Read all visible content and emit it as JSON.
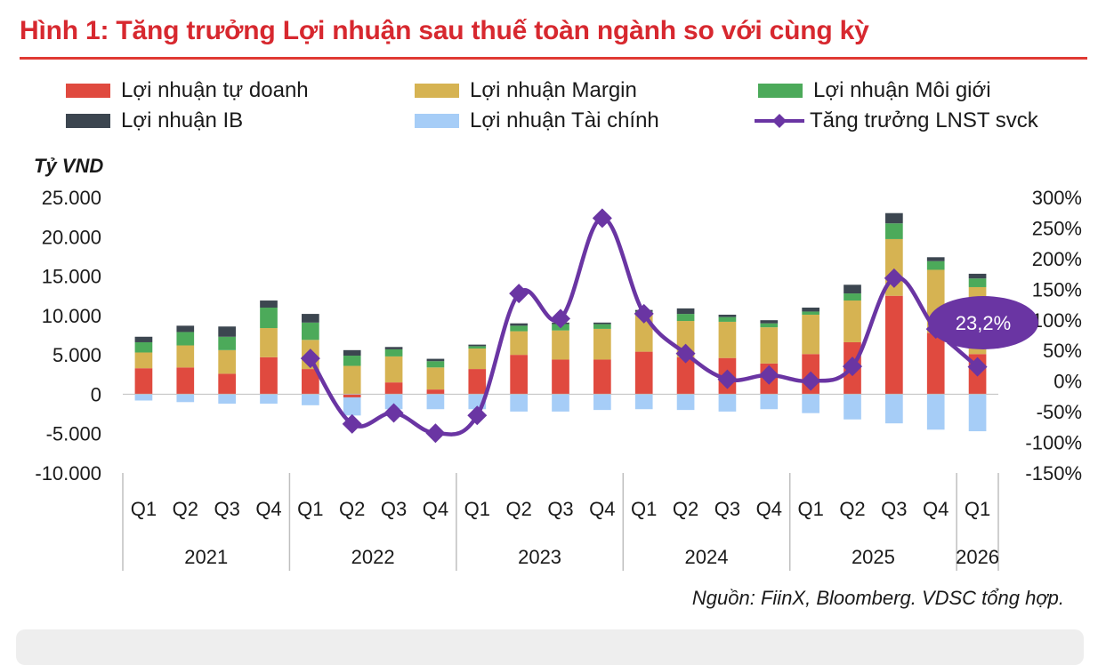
{
  "header": {
    "title": "Hình 1: Tăng trưởng Lợi nhuận sau thuế toàn ngành so với cùng kỳ"
  },
  "legend": {
    "items": [
      {
        "label": "Lợi nhuận tự doanh",
        "color": "#e04a3f",
        "kind": "bar"
      },
      {
        "label": "Lợi nhuận Margin",
        "color": "#d6b352",
        "kind": "bar"
      },
      {
        "label": "Lợi nhuận Môi giới",
        "color": "#4caa5a",
        "kind": "bar"
      },
      {
        "label": "Lợi nhuận IB",
        "color": "#3c4650",
        "kind": "bar"
      },
      {
        "label": "Lợi nhuận Tài chính",
        "color": "#a6cdf7",
        "kind": "bar"
      },
      {
        "label": "Tăng trưởng LNST svck",
        "color": "#6a35a3",
        "kind": "line"
      }
    ]
  },
  "chart_data": {
    "type": "bar",
    "stacked": true,
    "title": "Hình 1: Tăng trưởng Lợi nhuận sau thuế toàn ngành so với cùng kỳ",
    "ylabel": "Tỷ VND",
    "ylim": [
      -10000,
      25000
    ],
    "yticks": [
      25000,
      20000,
      15000,
      10000,
      5000,
      0,
      -5000,
      -10000
    ],
    "ytick_labels": [
      "25.000",
      "20.000",
      "15.000",
      "10.000",
      "5.000",
      "0",
      "-5.000",
      "-10.000"
    ],
    "y2lim": [
      -150,
      300
    ],
    "y2ticks": [
      300,
      250,
      200,
      150,
      100,
      50,
      0,
      -50,
      -100,
      -150
    ],
    "y2tick_labels": [
      "300%",
      "250%",
      "200%",
      "150%",
      "100%",
      "50%",
      "0%",
      "-50%",
      "-100%",
      "-150%"
    ],
    "categories": [
      "Q1",
      "Q2",
      "Q3",
      "Q4",
      "Q1",
      "Q2",
      "Q3",
      "Q4",
      "Q1",
      "Q2",
      "Q3",
      "Q4",
      "Q1",
      "Q2",
      "Q3",
      "Q4",
      "Q1",
      "Q2",
      "Q3",
      "Q4",
      "Q1"
    ],
    "year_groups": [
      {
        "label": "2021",
        "count": 4
      },
      {
        "label": "2022",
        "count": 4
      },
      {
        "label": "2023",
        "count": 4
      },
      {
        "label": "2024",
        "count": 4
      },
      {
        "label": "2025",
        "count": 4
      },
      {
        "label": "2026",
        "count": 1
      }
    ],
    "series": [
      {
        "name": "Lợi nhuận tự doanh",
        "color": "#e04a3f",
        "values": [
          3300,
          3400,
          2600,
          4700,
          3200,
          -400,
          1500,
          600,
          3200,
          5000,
          4400,
          4400,
          5400,
          4700,
          4600,
          3900,
          5100,
          6600,
          12500,
          7800,
          5100
        ]
      },
      {
        "name": "Lợi nhuận Margin",
        "color": "#d6b352",
        "values": [
          2000,
          2800,
          3000,
          3700,
          3700,
          3600,
          3300,
          2800,
          2600,
          3000,
          3700,
          3900,
          4700,
          4600,
          4600,
          4600,
          5000,
          5300,
          7200,
          8000,
          8500
        ]
      },
      {
        "name": "Lợi nhuận Môi giới",
        "color": "#4caa5a",
        "values": [
          1300,
          1700,
          1700,
          2600,
          2200,
          1300,
          900,
          800,
          300,
          700,
          800,
          600,
          400,
          900,
          600,
          500,
          400,
          900,
          2000,
          1100,
          1100
        ]
      },
      {
        "name": "Lợi nhuận IB",
        "color": "#3c4650",
        "values": [
          700,
          800,
          1300,
          900,
          1100,
          700,
          300,
          300,
          200,
          300,
          200,
          200,
          200,
          700,
          300,
          400,
          500,
          1100,
          1300,
          500,
          600
        ]
      },
      {
        "name": "Lợi nhuận Tài chính",
        "color": "#a6cdf7",
        "values": [
          -800,
          -1000,
          -1200,
          -1200,
          -1400,
          -2300,
          -1900,
          -1900,
          -1900,
          -2200,
          -2200,
          -2000,
          -1900,
          -2000,
          -2200,
          -1900,
          -2400,
          -3200,
          -3700,
          -4500,
          -4700
        ]
      }
    ],
    "line": {
      "name": "Tăng trưởng LNST svck",
      "color": "#6a35a3",
      "axis": "right",
      "values": [
        null,
        null,
        null,
        null,
        37,
        -70,
        -52,
        -85,
        -56,
        143,
        102,
        266,
        110,
        45,
        3,
        10,
        0,
        24,
        168,
        85,
        23.2
      ]
    },
    "annotation": {
      "label": "23,2%",
      "index": 20
    },
    "source": "Nguồn: FiinX, Bloomberg. VDSC tổng hợp."
  }
}
